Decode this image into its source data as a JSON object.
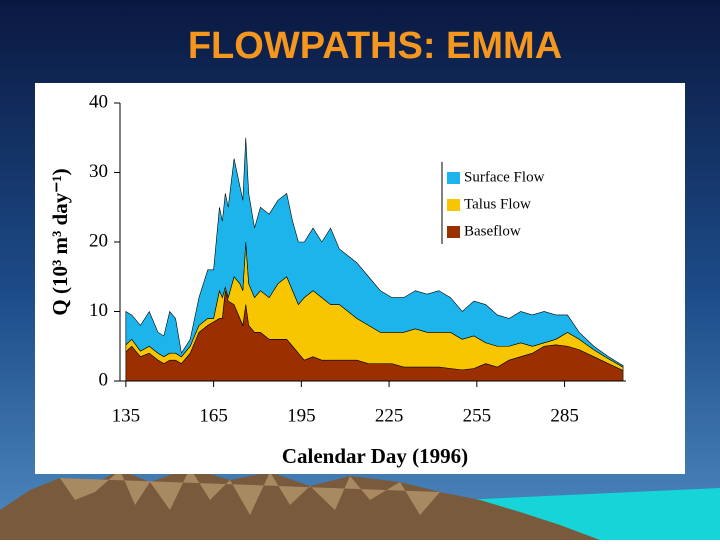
{
  "chart_data": {
    "type": "stacked_area",
    "title": "FLOWPATHS: EMMA",
    "xlabel": "Calendar Day (1996)",
    "ylabel": "Q (10³ m³ day⁻¹)",
    "x": [
      135,
      137,
      140,
      143,
      146,
      148,
      150,
      152,
      154,
      157,
      160,
      163,
      165,
      167,
      168,
      169,
      170,
      172,
      174,
      175,
      176,
      177,
      179,
      181,
      184,
      187,
      190,
      192,
      194,
      196,
      199,
      202,
      205,
      208,
      211,
      214,
      218,
      222,
      226,
      230,
      234,
      238,
      242,
      246,
      250,
      254,
      258,
      262,
      266,
      270,
      274,
      278,
      282,
      286,
      290,
      295,
      300,
      305
    ],
    "series": [
      {
        "name": "Baseflow",
        "color": "#9c2f00",
        "values": [
          4.2,
          5,
          3.5,
          4,
          3,
          2.5,
          3,
          3,
          2.5,
          4,
          7,
          8,
          8.5,
          9,
          9,
          13,
          11.5,
          11,
          9,
          8,
          11,
          8,
          7,
          7,
          6,
          6,
          6,
          5,
          4,
          3,
          3.5,
          3,
          3,
          3,
          3,
          3,
          2.5,
          2.5,
          2.5,
          2,
          2,
          2,
          2,
          1.8,
          1.6,
          1.8,
          2.5,
          2,
          3,
          3.5,
          4,
          5,
          5.2,
          5,
          4.5,
          3.5,
          2.5,
          1.5
        ]
      },
      {
        "name": "Talus Flow",
        "color": "#f7c600",
        "values": [
          1,
          1,
          0.8,
          1,
          1,
          1,
          1,
          1,
          1,
          1,
          1,
          1,
          0.5,
          4,
          3,
          0.5,
          0.5,
          4,
          5,
          5,
          9,
          6,
          5,
          6,
          6,
          8,
          9,
          8,
          7,
          9,
          9.5,
          9,
          8,
          8,
          7,
          6,
          5.5,
          4.5,
          4.5,
          5,
          5.5,
          5,
          5,
          5.2,
          4.4,
          4.7,
          3,
          3,
          2,
          2,
          1,
          0.5,
          0.8,
          2,
          1.5,
          1,
          0.7,
          0.5
        ]
      },
      {
        "name": "Surface Flow",
        "color": "#1db4ec",
        "values": [
          4.8,
          3.5,
          3.7,
          5,
          3,
          3,
          6,
          5,
          0.5,
          1,
          4,
          7,
          7,
          12,
          11,
          13.5,
          13,
          17,
          14,
          13,
          15,
          13,
          10,
          12,
          12,
          12,
          12,
          10,
          9,
          8,
          9,
          8,
          11,
          8,
          8,
          8,
          7,
          6,
          5,
          5,
          5.5,
          5.5,
          6,
          5,
          4,
          5,
          5.5,
          4.5,
          4,
          4.5,
          4.5,
          4.5,
          3.5,
          2.5,
          1,
          0.5,
          0.3,
          0.2
        ]
      }
    ],
    "xlim": [
      133,
      306
    ],
    "xticks": [
      135,
      165,
      195,
      225,
      255,
      285
    ],
    "ylim": [
      0,
      40
    ],
    "yticks": [
      0,
      10,
      20,
      30,
      40
    ],
    "legend": "upper-right"
  }
}
